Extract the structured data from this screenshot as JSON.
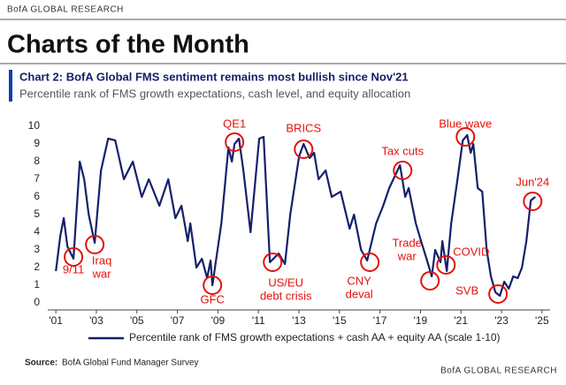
{
  "header": {
    "brand": "BofA GLOBAL RESEARCH",
    "title": "Charts of the Month"
  },
  "chart_data": {
    "type": "line",
    "title": "Chart 2: BofA Global FMS sentiment remains most bullish since Nov'21",
    "subtitle": "Percentile rank of FMS growth expectations, cash level, and equity allocation",
    "x": [
      2001.0,
      2001.22,
      2001.39,
      2001.57,
      2001.87,
      2002.18,
      2002.4,
      2002.62,
      2002.92,
      2003.23,
      2003.58,
      2003.93,
      2004.36,
      2004.8,
      2005.24,
      2005.59,
      2006.11,
      2006.55,
      2006.9,
      2007.2,
      2007.51,
      2007.64,
      2007.94,
      2008.21,
      2008.47,
      2008.64,
      2008.73,
      2009.17,
      2009.52,
      2009.69,
      2009.82,
      2010.04,
      2010.26,
      2010.61,
      2011.04,
      2011.26,
      2011.57,
      2012.0,
      2012.31,
      2012.57,
      2013.01,
      2013.23,
      2013.53,
      2013.75,
      2013.97,
      2014.32,
      2014.62,
      2015.06,
      2015.5,
      2015.72,
      2016.07,
      2016.37,
      2016.81,
      2017.16,
      2017.46,
      2017.99,
      2018.25,
      2018.42,
      2018.77,
      2019.03,
      2019.3,
      2019.56,
      2019.73,
      2019.99,
      2020.08,
      2020.3,
      2020.52,
      2020.83,
      2021.09,
      2021.31,
      2021.48,
      2021.61,
      2021.83,
      2022.05,
      2022.27,
      2022.48,
      2022.7,
      2022.92,
      2023.14,
      2023.36,
      2023.58,
      2023.8,
      2024.01,
      2024.23,
      2024.45,
      2024.67
    ],
    "series": [
      {
        "name": "Percentile rank of FMS growth expectations + cash AA + equity AA (scale 1-10)",
        "color": "#14206b",
        "values": [
          1.8,
          3.8,
          4.8,
          3.2,
          2.5,
          8.0,
          7.0,
          5.0,
          3.4,
          7.5,
          9.3,
          9.2,
          7.0,
          8.0,
          6.0,
          7.0,
          5.5,
          7.0,
          4.8,
          5.5,
          3.5,
          4.5,
          2.0,
          2.5,
          1.4,
          2.4,
          1.0,
          4.5,
          8.8,
          8.0,
          9.0,
          9.3,
          7.5,
          4.0,
          9.3,
          9.4,
          2.3,
          2.8,
          2.2,
          5.0,
          8.3,
          9.0,
          8.2,
          8.5,
          7.0,
          7.5,
          6.0,
          6.3,
          4.2,
          5.0,
          3.0,
          2.4,
          4.5,
          5.5,
          6.5,
          7.8,
          6.0,
          6.5,
          4.5,
          3.5,
          2.5,
          1.5,
          3.0,
          2.3,
          3.5,
          1.8,
          4.5,
          7.0,
          9.2,
          9.5,
          8.5,
          9.0,
          6.5,
          6.3,
          3.0,
          1.5,
          0.6,
          0.4,
          1.2,
          0.8,
          1.5,
          1.4,
          2.0,
          3.5,
          5.8,
          6.0
        ]
      }
    ],
    "xlim": [
      2000.6,
      2025.4
    ],
    "ylim": [
      -0.4,
      10.4
    ],
    "xticks": [
      {
        "value": 2001,
        "label": "'01"
      },
      {
        "value": 2003,
        "label": "'03"
      },
      {
        "value": 2005,
        "label": "'05"
      },
      {
        "value": 2007,
        "label": "'07"
      },
      {
        "value": 2009,
        "label": "'09"
      },
      {
        "value": 2011,
        "label": "'11"
      },
      {
        "value": 2013,
        "label": "'13"
      },
      {
        "value": 2015,
        "label": "'15"
      },
      {
        "value": 2017,
        "label": "'17"
      },
      {
        "value": 2019,
        "label": "'19"
      },
      {
        "value": 2021,
        "label": "'21"
      },
      {
        "value": 2023,
        "label": "'23"
      },
      {
        "value": 2025,
        "label": "'25"
      }
    ],
    "yticks": [
      0,
      1,
      2,
      3,
      4,
      5,
      6,
      7,
      8,
      9,
      10
    ],
    "grid": false,
    "annotation_color": "#e3120b",
    "annotations": [
      {
        "lines": [
          "9/11"
        ],
        "x": 2001.87,
        "y": 2.6
      },
      {
        "lines": [
          "Iraq",
          "war"
        ],
        "x": 2002.92,
        "y": 3.3
      },
      {
        "lines": [
          "GFC"
        ],
        "x": 2008.73,
        "y": 1.0
      },
      {
        "lines": [
          "QE1"
        ],
        "x": 2009.82,
        "y": 9.1
      },
      {
        "lines": [
          "US/EU",
          "debt crisis"
        ],
        "x": 2011.7,
        "y": 2.3
      },
      {
        "lines": [
          "BRICS"
        ],
        "x": 2013.23,
        "y": 8.7
      },
      {
        "lines": [
          "CNY",
          "deval"
        ],
        "x": 2016.5,
        "y": 2.3
      },
      {
        "lines": [
          "Tax cuts"
        ],
        "x": 2018.12,
        "y": 7.5
      },
      {
        "lines": [
          "Trade",
          "war"
        ],
        "x": 2019.47,
        "y": 1.25
      },
      {
        "lines": [
          "COVID"
        ],
        "x": 2020.26,
        "y": 2.15
      },
      {
        "lines": [
          "Blue wave"
        ],
        "x": 2021.22,
        "y": 9.4
      },
      {
        "lines": [
          "SVB"
        ],
        "x": 2022.83,
        "y": 0.5
      },
      {
        "lines": [
          "Jun'24"
        ],
        "x": 2024.54,
        "y": 5.75
      }
    ]
  },
  "footer": {
    "source_label": "Source:",
    "source": "BofA Global Fund Manager Survey",
    "brand": "BofA GLOBAL RESEARCH"
  }
}
